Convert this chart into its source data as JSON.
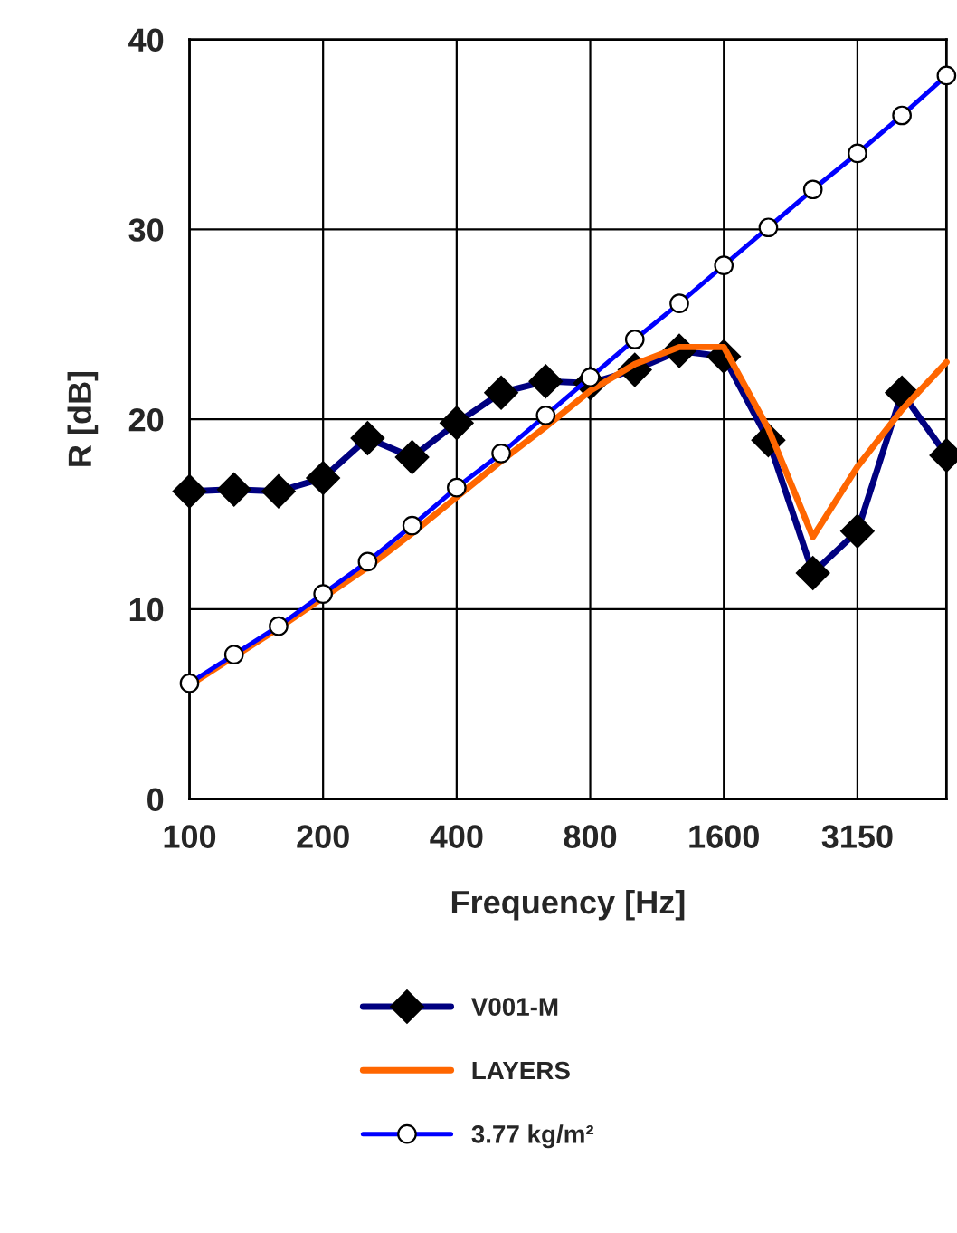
{
  "chart_data": {
    "type": "line",
    "xlabel": "Frequency [Hz]",
    "ylabel": "R [dB]",
    "categories": [
      "100",
      null,
      null,
      "200",
      null,
      null,
      "400",
      null,
      null,
      "800",
      null,
      null,
      "1600",
      null,
      null,
      "3150",
      null,
      null
    ],
    "series": [
      {
        "name": "V001-M",
        "color": "#000080",
        "marker": "diamond",
        "values": [
          16.2,
          16.3,
          16.2,
          16.9,
          19.0,
          18.0,
          19.8,
          21.4,
          22.0,
          21.9,
          22.6,
          23.6,
          23.3,
          18.9,
          11.9,
          14.1,
          21.4,
          18.1
        ]
      },
      {
        "name": "LAYERS",
        "color": "#ff6600",
        "marker": "none",
        "values": [
          6.0,
          7.5,
          9.0,
          10.6,
          12.2,
          14.0,
          15.9,
          17.8,
          19.6,
          21.5,
          22.9,
          23.8,
          23.8,
          19.5,
          13.8,
          17.5,
          20.5,
          23.0
        ]
      },
      {
        "name": "3.77 kg/m²",
        "color": "#0000ff",
        "marker": "circle",
        "values": [
          6.1,
          7.6,
          9.1,
          10.8,
          12.5,
          14.4,
          16.4,
          18.2,
          20.2,
          22.2,
          24.2,
          26.1,
          28.1,
          30.1,
          32.1,
          34.0,
          36.0,
          38.1
        ]
      }
    ],
    "ylim": [
      0,
      40
    ],
    "yticks": [
      0,
      10,
      20,
      30,
      40
    ],
    "grid": true,
    "legend": "bottom",
    "line_style": "solid"
  }
}
